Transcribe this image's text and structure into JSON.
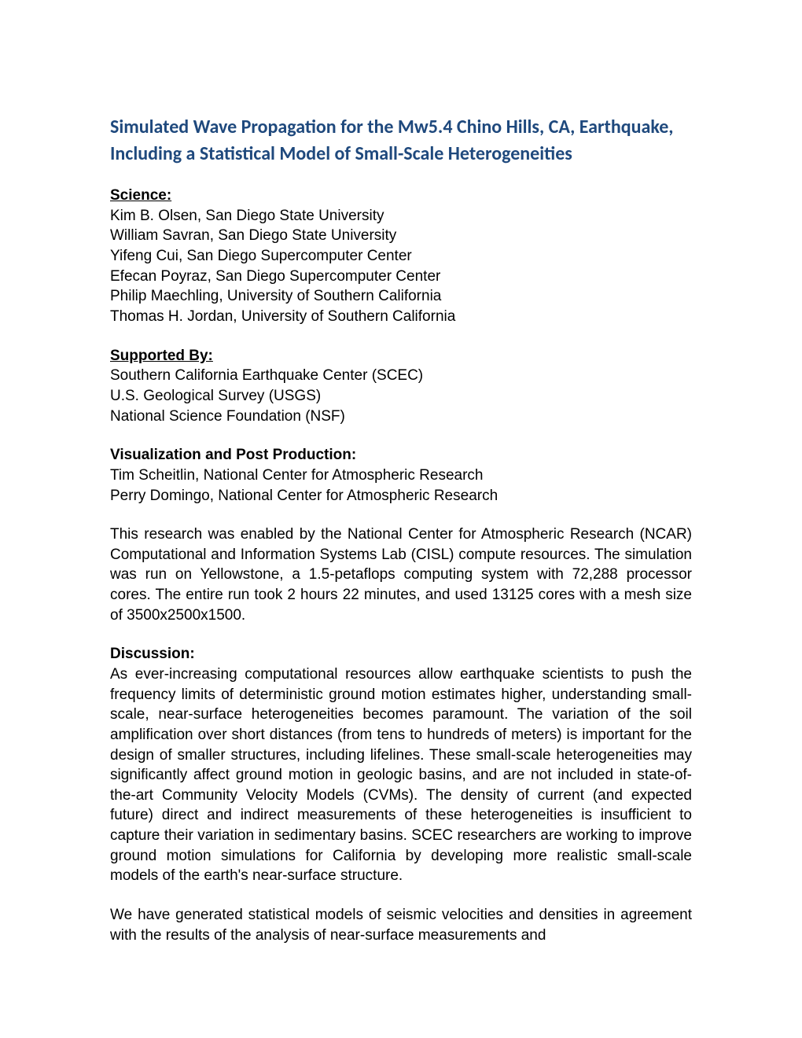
{
  "title": "Simulated Wave Propagation for the Mw5.4 Chino Hills, CA, Earthquake, Including a Statistical Model of Small-Scale Heterogeneities",
  "science": {
    "heading": "Science:",
    "lines": [
      "Kim B. Olsen, San Diego State University",
      "William Savran, San Diego State University",
      "Yifeng Cui, San Diego Supercomputer Center",
      "Efecan Poyraz, San Diego Supercomputer Center",
      "Philip Maechling, University of Southern California",
      "Thomas H. Jordan, University of Southern California"
    ]
  },
  "supported": {
    "heading": "Supported By:",
    "lines": [
      "Southern California Earthquake Center (SCEC)",
      "U.S. Geological Survey (USGS)",
      "National Science Foundation (NSF)"
    ]
  },
  "visualization": {
    "heading": "Visualization and Post Production:",
    "lines": [
      "Tim Scheitlin, National Center for Atmospheric Research",
      "Perry Domingo, National Center for Atmospheric Research"
    ]
  },
  "intro_paragraph": "This research was enabled by the National Center for Atmospheric Research (NCAR) Computational and Information Systems Lab (CISL) compute resources. The simulation was run on Yellowstone, a 1.5-petaflops computing system with 72,288 processor cores. The entire run took 2 hours 22 minutes, and used 13125 cores with a mesh size of 3500x2500x1500.",
  "discussion": {
    "heading": "Discussion:",
    "paragraphs": [
      "As ever-increasing computational resources allow earthquake scientists to push the frequency limits of deterministic ground motion estimates higher, understanding small-scale, near-surface heterogeneities becomes paramount. The variation of the soil amplification over short distances (from tens to hundreds of meters) is important for the design of smaller structures, including lifelines. These small-scale heterogeneities may significantly affect ground motion in geologic basins, and are not included in state-of-the-art Community Velocity Models (CVMs). The density of current (and expected future) direct and indirect measurements of these heterogeneities is insufficient to capture their variation in sedimentary basins.  SCEC researchers are working to improve ground motion simulations for California by developing more realistic small-scale models of the earth's near-surface structure.",
      "We have generated statistical models of seismic velocities and densities in agreement with the results of the analysis of near-surface measurements and"
    ]
  },
  "colors": {
    "title_color": "#1f497d",
    "text_color": "#000000",
    "background_color": "#ffffff"
  },
  "fonts": {
    "title_size": 24,
    "body_size": 19
  }
}
